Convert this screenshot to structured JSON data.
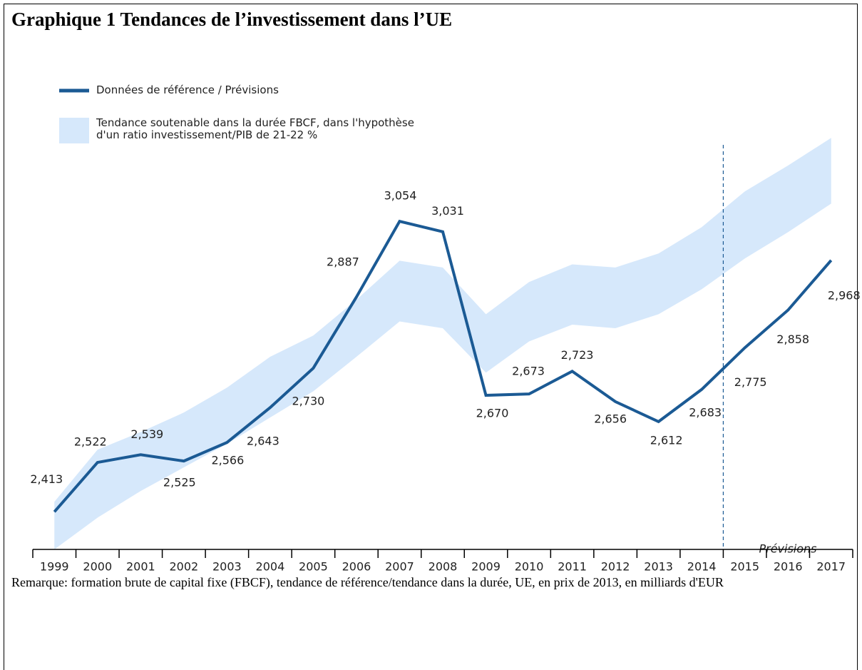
{
  "chart_data": {
    "type": "line",
    "title": "Graphique 1 Tendances de l’investissement dans l’UE",
    "categories": [
      "1999",
      "2000",
      "2001",
      "2002",
      "2003",
      "2004",
      "2005",
      "2006",
      "2007",
      "2008",
      "2009",
      "2010",
      "2011",
      "2012",
      "2013",
      "2014",
      "2015",
      "2016",
      "2017"
    ],
    "series": [
      {
        "name": "Données de référence / Prévisions",
        "color": "#1b5a94",
        "values": [
          2413,
          2522,
          2539,
          2525,
          2566,
          2643,
          2730,
          2887,
          3054,
          3031,
          2670,
          2673,
          2723,
          2656,
          2612,
          2683,
          2775,
          2858,
          2968
        ],
        "value_labels": [
          "2,413",
          "2,522",
          "2,539",
          "2,525",
          "2,566",
          "2,643",
          "2,730",
          "2,887",
          "3,054",
          "3,031",
          "2,670",
          "2,673",
          "2,723",
          "2,656",
          "2,612",
          "2,683",
          "2,775",
          "2,858",
          "2,968"
        ]
      }
    ],
    "band": {
      "name": "Tendance soutenable dans la durée FBCF, dans l'hypothèse\nd'un ratio investissement/PIB de 21-22 %",
      "color": "#d6e8fb",
      "upper": [
        2435,
        2550,
        2589,
        2632,
        2687,
        2755,
        2802,
        2881,
        2967,
        2952,
        2849,
        2920,
        2959,
        2952,
        2983,
        3041,
        3120,
        3177,
        3238
      ],
      "lower": [
        2330,
        2400,
        2459,
        2511,
        2563,
        2621,
        2679,
        2755,
        2833,
        2818,
        2720,
        2789,
        2826,
        2818,
        2849,
        2904,
        2972,
        3030,
        3093
      ]
    },
    "annotation": "Prévisions",
    "note": "Remarque: formation brute de capital fixe (FBCF), tendance de référence/tendance dans la durée, UE, en prix de 2013, en milliards d'EUR",
    "ylim": [
      2330,
      3240
    ]
  }
}
